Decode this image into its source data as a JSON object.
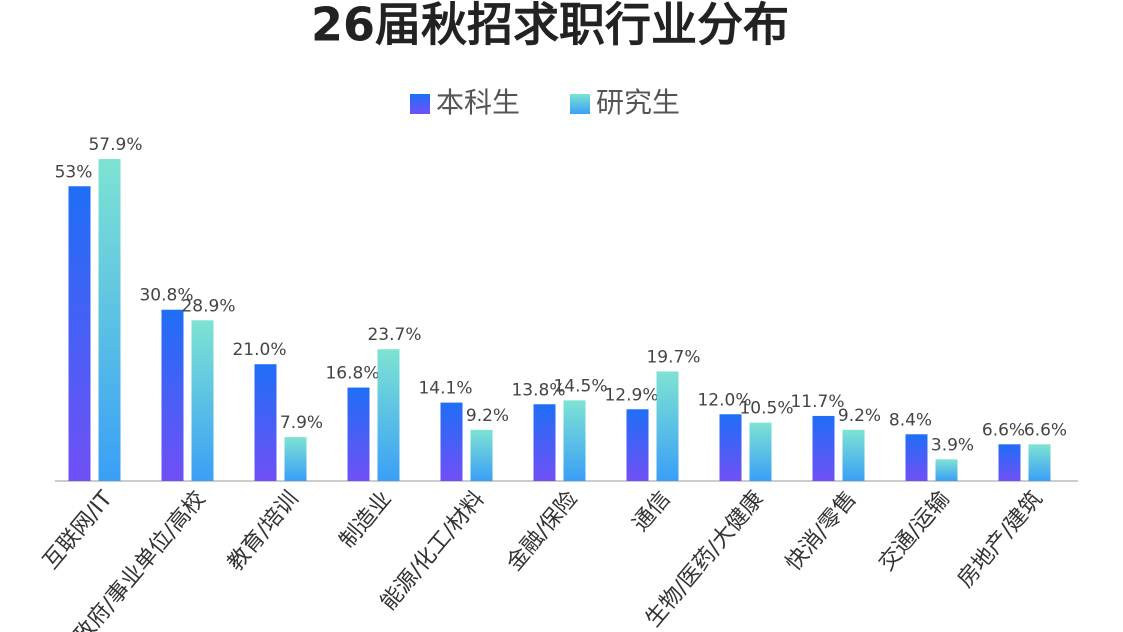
{
  "chart_data": {
    "type": "bar",
    "title": "26届秋招求职行业分布",
    "categories": [
      "互联网/IT",
      "政府/事业单位/高校",
      "教育/培训",
      "制造业",
      "能源/化工/材料",
      "金融/保险",
      "通信",
      "生物/医药/大健康",
      "快消/零售",
      "交通/运输",
      "房地产/建筑"
    ],
    "series": [
      {
        "name": "本科生",
        "color": [
          "#1f6ef6",
          "#7050f6"
        ],
        "values": [
          53,
          30.8,
          21.0,
          16.8,
          14.1,
          13.8,
          12.9,
          12.0,
          11.7,
          8.4,
          6.6
        ],
        "value_labels": [
          "53%",
          "30.8%",
          "21.0%",
          "16.8%",
          "14.1%",
          "13.8%",
          "12.9%",
          "12.0%",
          "11.7%",
          "8.4%",
          "6.6%"
        ]
      },
      {
        "name": "研究生",
        "color": [
          "#7ee3d2",
          "#3a9ff6"
        ],
        "values": [
          57.9,
          28.9,
          7.9,
          23.7,
          9.2,
          14.5,
          19.7,
          10.5,
          9.2,
          3.9,
          6.6
        ],
        "value_labels": [
          "57.9%",
          "28.9%",
          "7.9%",
          "23.7%",
          "9.2%",
          "14.5%",
          "19.7%",
          "10.5%",
          "9.2%",
          "3.9%",
          "6.6%"
        ]
      }
    ]
  }
}
